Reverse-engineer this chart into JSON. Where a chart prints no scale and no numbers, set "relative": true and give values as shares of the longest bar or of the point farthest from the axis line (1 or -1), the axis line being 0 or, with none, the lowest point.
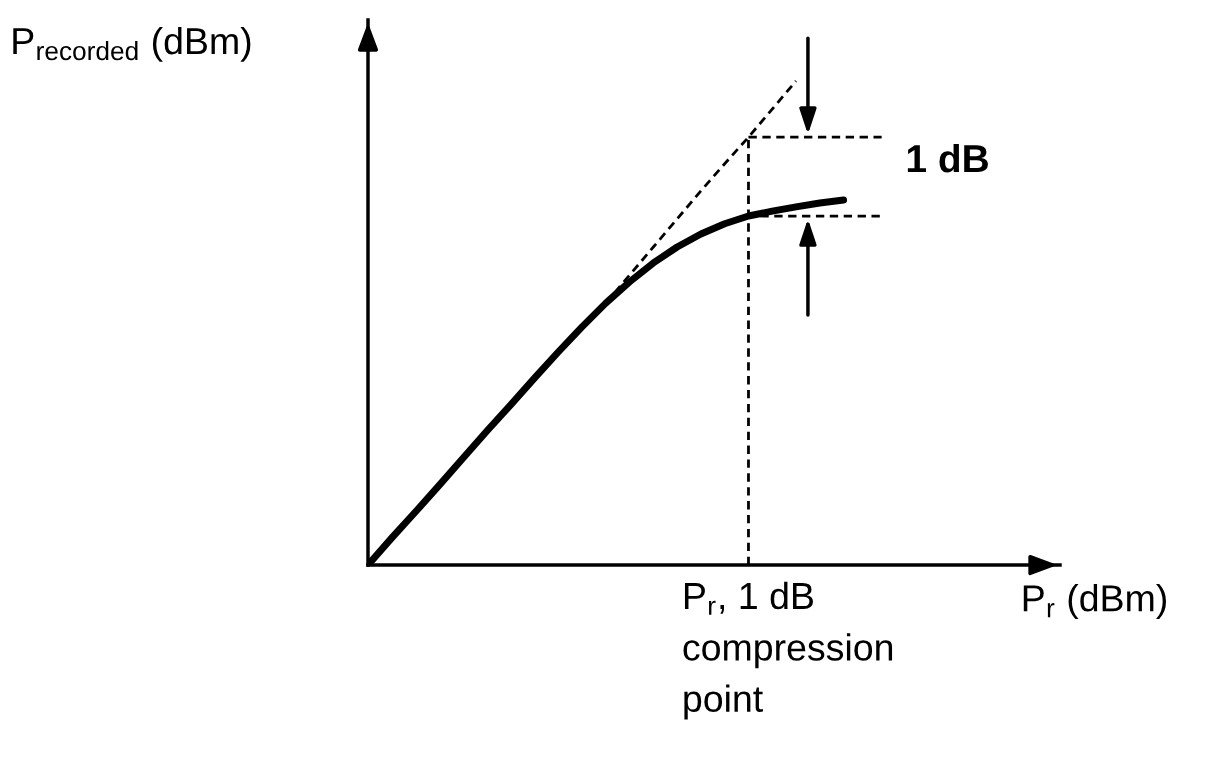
{
  "chart_data": {
    "type": "line",
    "relative": true,
    "xlabel": "P$_{r}$ (dBm)",
    "ylabel": "P$_{recorded}$ (dBm)",
    "categories": [
      null,
      null,
      null,
      null,
      null,
      null,
      null,
      null,
      null,
      null,
      null,
      null,
      null,
      null,
      null,
      null,
      null,
      null,
      null,
      null,
      null
    ],
    "series": [
      {
        "color": "#000000",
        "line_style": "solid",
        "values": [
          0,
          0.056,
          0.11,
          0.165,
          0.221,
          0.277,
          0.331,
          0.386,
          0.44,
          0.492,
          0.541,
          0.585,
          0.624,
          0.657,
          0.684,
          0.705,
          0.721,
          0.731,
          0.74,
          0.748,
          0.754
        ]
      },
      {
        "color": "#000000",
        "line_style": "dashed",
        "values": [
          null,
          null,
          null,
          null,
          null,
          null,
          null,
          null,
          null,
          null,
          0.541,
          0.599,
          0.657,
          0.715,
          0.773,
          0.829,
          0.884,
          0.942,
          1.0,
          null,
          null
        ]
      }
    ],
    "annotations": [
      "1 dB",
      "P$_{r}$, 1 dB compression point"
    ],
    "marker": "none"
  }
}
